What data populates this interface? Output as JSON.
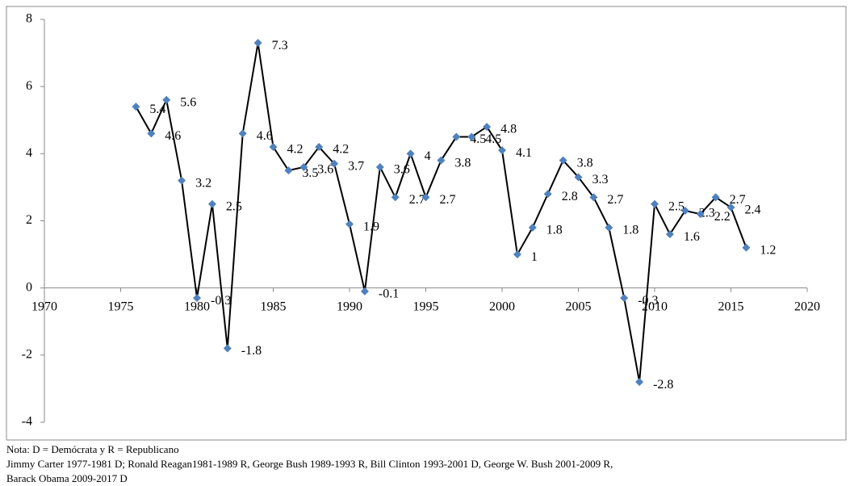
{
  "chart_data": {
    "type": "line",
    "x": [
      1976,
      1977,
      1978,
      1979,
      1980,
      1981,
      1982,
      1983,
      1984,
      1985,
      1986,
      1987,
      1988,
      1989,
      1990,
      1991,
      1992,
      1993,
      1994,
      1995,
      1996,
      1997,
      1998,
      1999,
      2000,
      2001,
      2002,
      2003,
      2004,
      2005,
      2006,
      2007,
      2008,
      2009,
      2010,
      2011,
      2012,
      2013,
      2014,
      2015,
      2016
    ],
    "values": [
      5.4,
      4.6,
      5.6,
      3.2,
      -0.3,
      2.5,
      -1.8,
      4.6,
      7.3,
      4.2,
      3.5,
      3.6,
      4.2,
      3.7,
      1.9,
      -0.1,
      3.6,
      2.7,
      4,
      2.7,
      3.8,
      4.5,
      4.5,
      4.8,
      4.1,
      1,
      1.8,
      2.8,
      3.8,
      3.3,
      2.7,
      1.8,
      -0.3,
      -2.8,
      2.5,
      1.6,
      2.3,
      2.2,
      2.7,
      2.4,
      1.2
    ],
    "line_color": "#000000",
    "marker_color": "#4f81bd",
    "xlim": [
      1970,
      2020
    ],
    "xticks": [
      1970,
      1975,
      1980,
      1985,
      1990,
      1995,
      2000,
      2005,
      2010,
      2015,
      2020
    ],
    "ylim": [
      -4,
      8
    ],
    "yticks": [
      -4,
      -2,
      0,
      2,
      4,
      6,
      8
    ],
    "grid": false,
    "notes": [
      "Nota: D = Demócrata y R = Republicano",
      "Jimmy Carter 1977-1981 D; Ronald Reagan1981-1989 R, George Bush 1989-1993 R, Bill Clinton 1993-2001 D, George W. Bush 2001-2009 R,",
      "Barack Obama 2009-2017 D"
    ]
  }
}
